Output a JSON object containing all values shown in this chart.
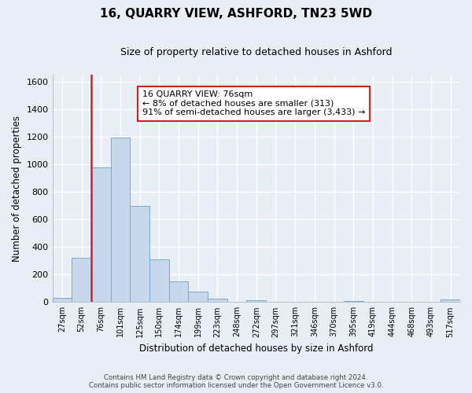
{
  "title": "16, QUARRY VIEW, ASHFORD, TN23 5WD",
  "subtitle": "Size of property relative to detached houses in Ashford",
  "xlabel": "Distribution of detached houses by size in Ashford",
  "ylabel": "Number of detached properties",
  "bar_labels": [
    "27sqm",
    "52sqm",
    "76sqm",
    "101sqm",
    "125sqm",
    "150sqm",
    "174sqm",
    "199sqm",
    "223sqm",
    "248sqm",
    "272sqm",
    "297sqm",
    "321sqm",
    "346sqm",
    "370sqm",
    "395sqm",
    "419sqm",
    "444sqm",
    "468sqm",
    "493sqm",
    "517sqm"
  ],
  "bar_values": [
    30,
    320,
    975,
    1195,
    700,
    310,
    150,
    75,
    25,
    0,
    15,
    0,
    0,
    0,
    0,
    10,
    0,
    0,
    0,
    0,
    20
  ],
  "bar_color": "#c8d8ec",
  "bar_edge_color": "#7aa8cc",
  "highlight_index": 2,
  "highlight_color": "#cc2222",
  "annotation_title": "16 QUARRY VIEW: 76sqm",
  "annotation_line1": "← 8% of detached houses are smaller (313)",
  "annotation_line2": "91% of semi-detached houses are larger (3,433) →",
  "annotation_box_color": "#ffffff",
  "annotation_box_edge_color": "#cc2222",
  "ylim": [
    0,
    1650
  ],
  "yticks": [
    0,
    200,
    400,
    600,
    800,
    1000,
    1200,
    1400,
    1600
  ],
  "footer1": "Contains HM Land Registry data © Crown copyright and database right 2024.",
  "footer2": "Contains public sector information licensed under the Open Government Licence v3.0.",
  "bg_color": "#e8eef6",
  "grid_color": "#ffffff",
  "axes_bg": "#e8eef6"
}
